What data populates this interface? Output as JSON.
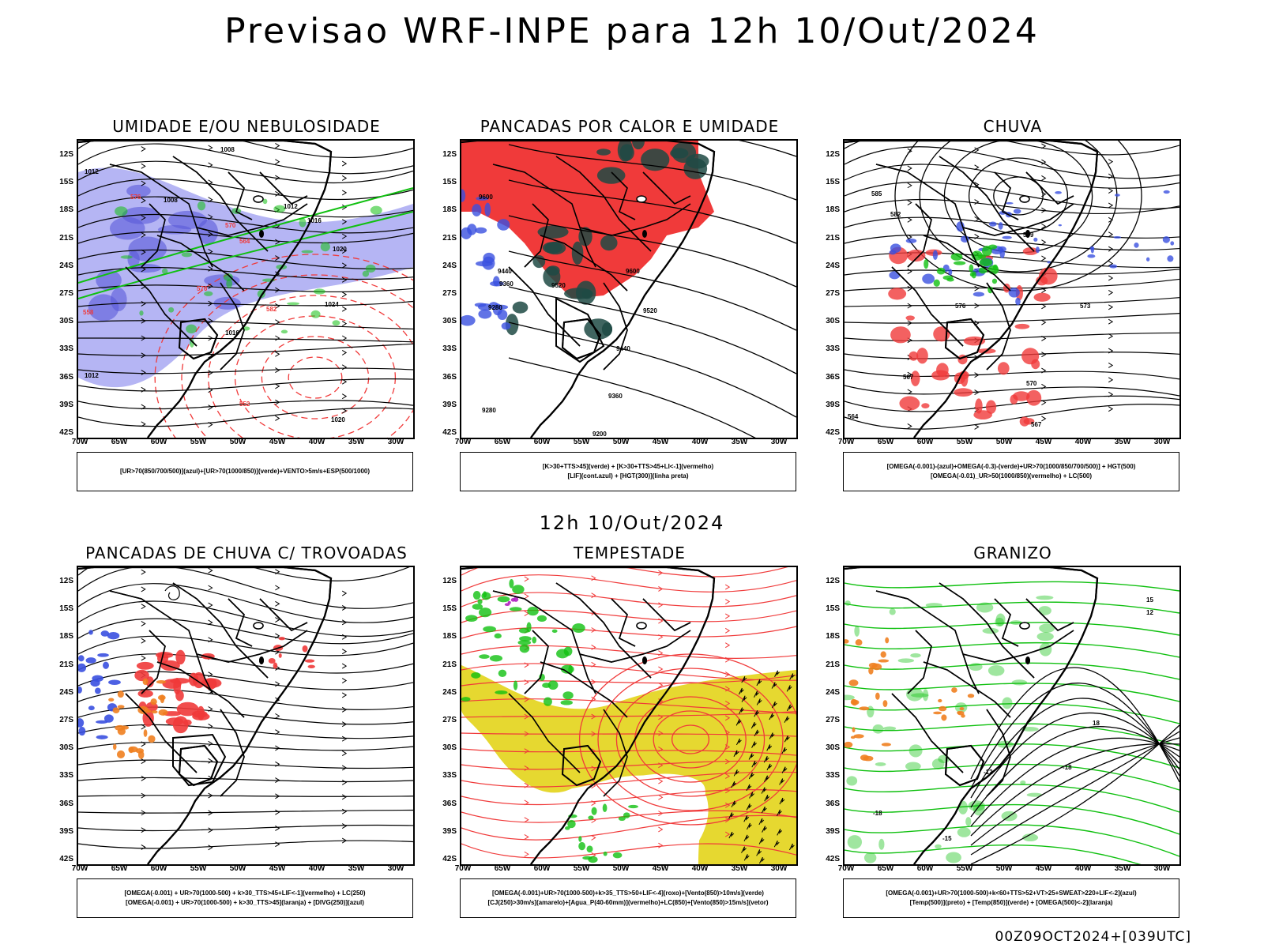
{
  "main_title": "Previsao WRF-INPE  para 12h 10/Out/2024",
  "mid_title": "12h 10/Out/2024",
  "footer_timestamp": "00Z09OCT2024+[039UTC]",
  "lat_labels": [
    "12S",
    "15S",
    "18S",
    "21S",
    "24S",
    "27S",
    "30S",
    "33S",
    "36S",
    "39S",
    "42S"
  ],
  "lon_labels": [
    "70W",
    "65W",
    "60W",
    "55W",
    "50W",
    "45W",
    "40W",
    "35W",
    "30W"
  ],
  "colors": {
    "blue_fill": "#9c9cf0",
    "blue_dark": "#5a5ad8",
    "green": "#10c010",
    "red": "#f03a3a",
    "dark_teal": "#1f4a44",
    "yellow": "#e6d830",
    "orange": "#f08020",
    "purple": "#b020c0"
  },
  "panels": [
    {
      "title": "UMIDADE E/OU NEBULOSIDADE",
      "legend": [
        "[UR>70(850/700/500)](azul)+[UR>70(1000/850)](verde)+VENTO>5m/s+ESP(500/1000)"
      ],
      "contour_labels": [
        "1008",
        "1012",
        "1016",
        "1020",
        "1024",
        "576",
        "570",
        "564",
        "558",
        "552",
        "582"
      ]
    },
    {
      "title": "PANCADAS POR CALOR E UMIDADE",
      "legend": [
        "[K>30+TTS>45](verde) + [K>30+TTS>45+LI<-1](vermelho)",
        "[LIF](cont.azul) + [HGT(300)](linha preta)"
      ],
      "contour_labels": [
        "9600",
        "9520",
        "9440",
        "9360",
        "9280",
        "9200"
      ]
    },
    {
      "title": "CHUVA",
      "legend": [
        "[OMEGA(-0.001)-(azul)+OMEGA(-0.3)-(verde)+UR>70(1000/850/700/500)] + HGT(500)",
        "[OMEGA(-0.01)_UR>50(1000/850)(vermelho) + LC(500)"
      ],
      "contour_labels": [
        "585",
        "582",
        "579",
        "576",
        "573",
        "570",
        "567",
        "564"
      ]
    },
    {
      "title": "PANCADAS DE CHUVA C/ TROVOADAS",
      "legend": [
        "[OMEGA(-0.001) + UR>70(1000-500) + k>30_TTS>45+LIF<-1](vermelho) + LC(250)",
        "[OMEGA(-0.001) + UR>70(1000-500) + k>30_TTS>45](laranja) + [DIVG(250)](azul)"
      ],
      "contour_labels": []
    },
    {
      "title": "TEMPESTADE",
      "legend": [
        "[OMEGA(-0.001)+UR>70(1000-500)+k>35_TTS>50+LIF<-4](roxo)+[Vento(850)>10m/s](verde)",
        "[CJ(250)>30m/s](amarelo)+[Agua_P(40-60mm)](vermelho)+LC(850)+[Vento(850)>15m/s](vetor)"
      ],
      "contour_labels": []
    },
    {
      "title": "GRANIZO",
      "legend": [
        "[OMEGA(-0.001)+UR>70(1000-500)+k<60+TTS>52+VT>25+SWEAT>220+LIF<-2](azul)",
        "[Temp(500)](preto) + [Temp(850)](verde) + [OMEGA(500)<-2](laranja)"
      ],
      "contour_labels": [
        "-12",
        "-15",
        "-18",
        "12",
        "15",
        "18"
      ]
    }
  ]
}
